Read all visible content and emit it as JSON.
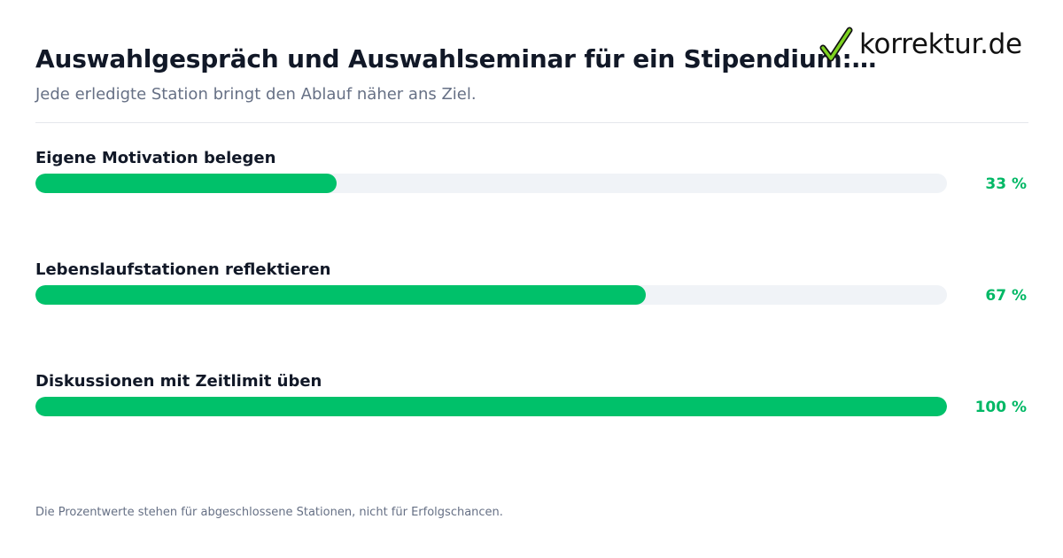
{
  "header": {
    "title": "Auswahlgespräch und Auswahlseminar für ein Stipendium:…",
    "subtitle": "Jede erledigte Station bringt den Ablauf näher ans Ziel."
  },
  "logo": {
    "text": "korrektur.de",
    "icon": "checkmark-icon"
  },
  "chart_data": {
    "type": "bar",
    "orientation": "horizontal",
    "title": "Auswahlgespräch und Auswahlseminar für ein Stipendium:…",
    "subtitle": "Jede erledigte Station bringt den Ablauf näher ans Ziel.",
    "categories": [
      "Eigene Motivation belegen",
      "Lebenslaufstationen reflektieren",
      "Diskussionen mit Zeitlimit üben"
    ],
    "values": [
      33,
      67,
      100
    ],
    "value_labels": [
      "33 %",
      "67 %",
      "100 %"
    ],
    "xlim": [
      0,
      100
    ],
    "unit": "%",
    "colors": {
      "bar": "#00c16a",
      "track": "#f0f3f7",
      "value_text": "#00b865"
    },
    "grid": false,
    "legend": "none"
  },
  "footnote": "Die Prozentwerte stehen für abgeschlossene Stationen, nicht für Erfolgschancen."
}
